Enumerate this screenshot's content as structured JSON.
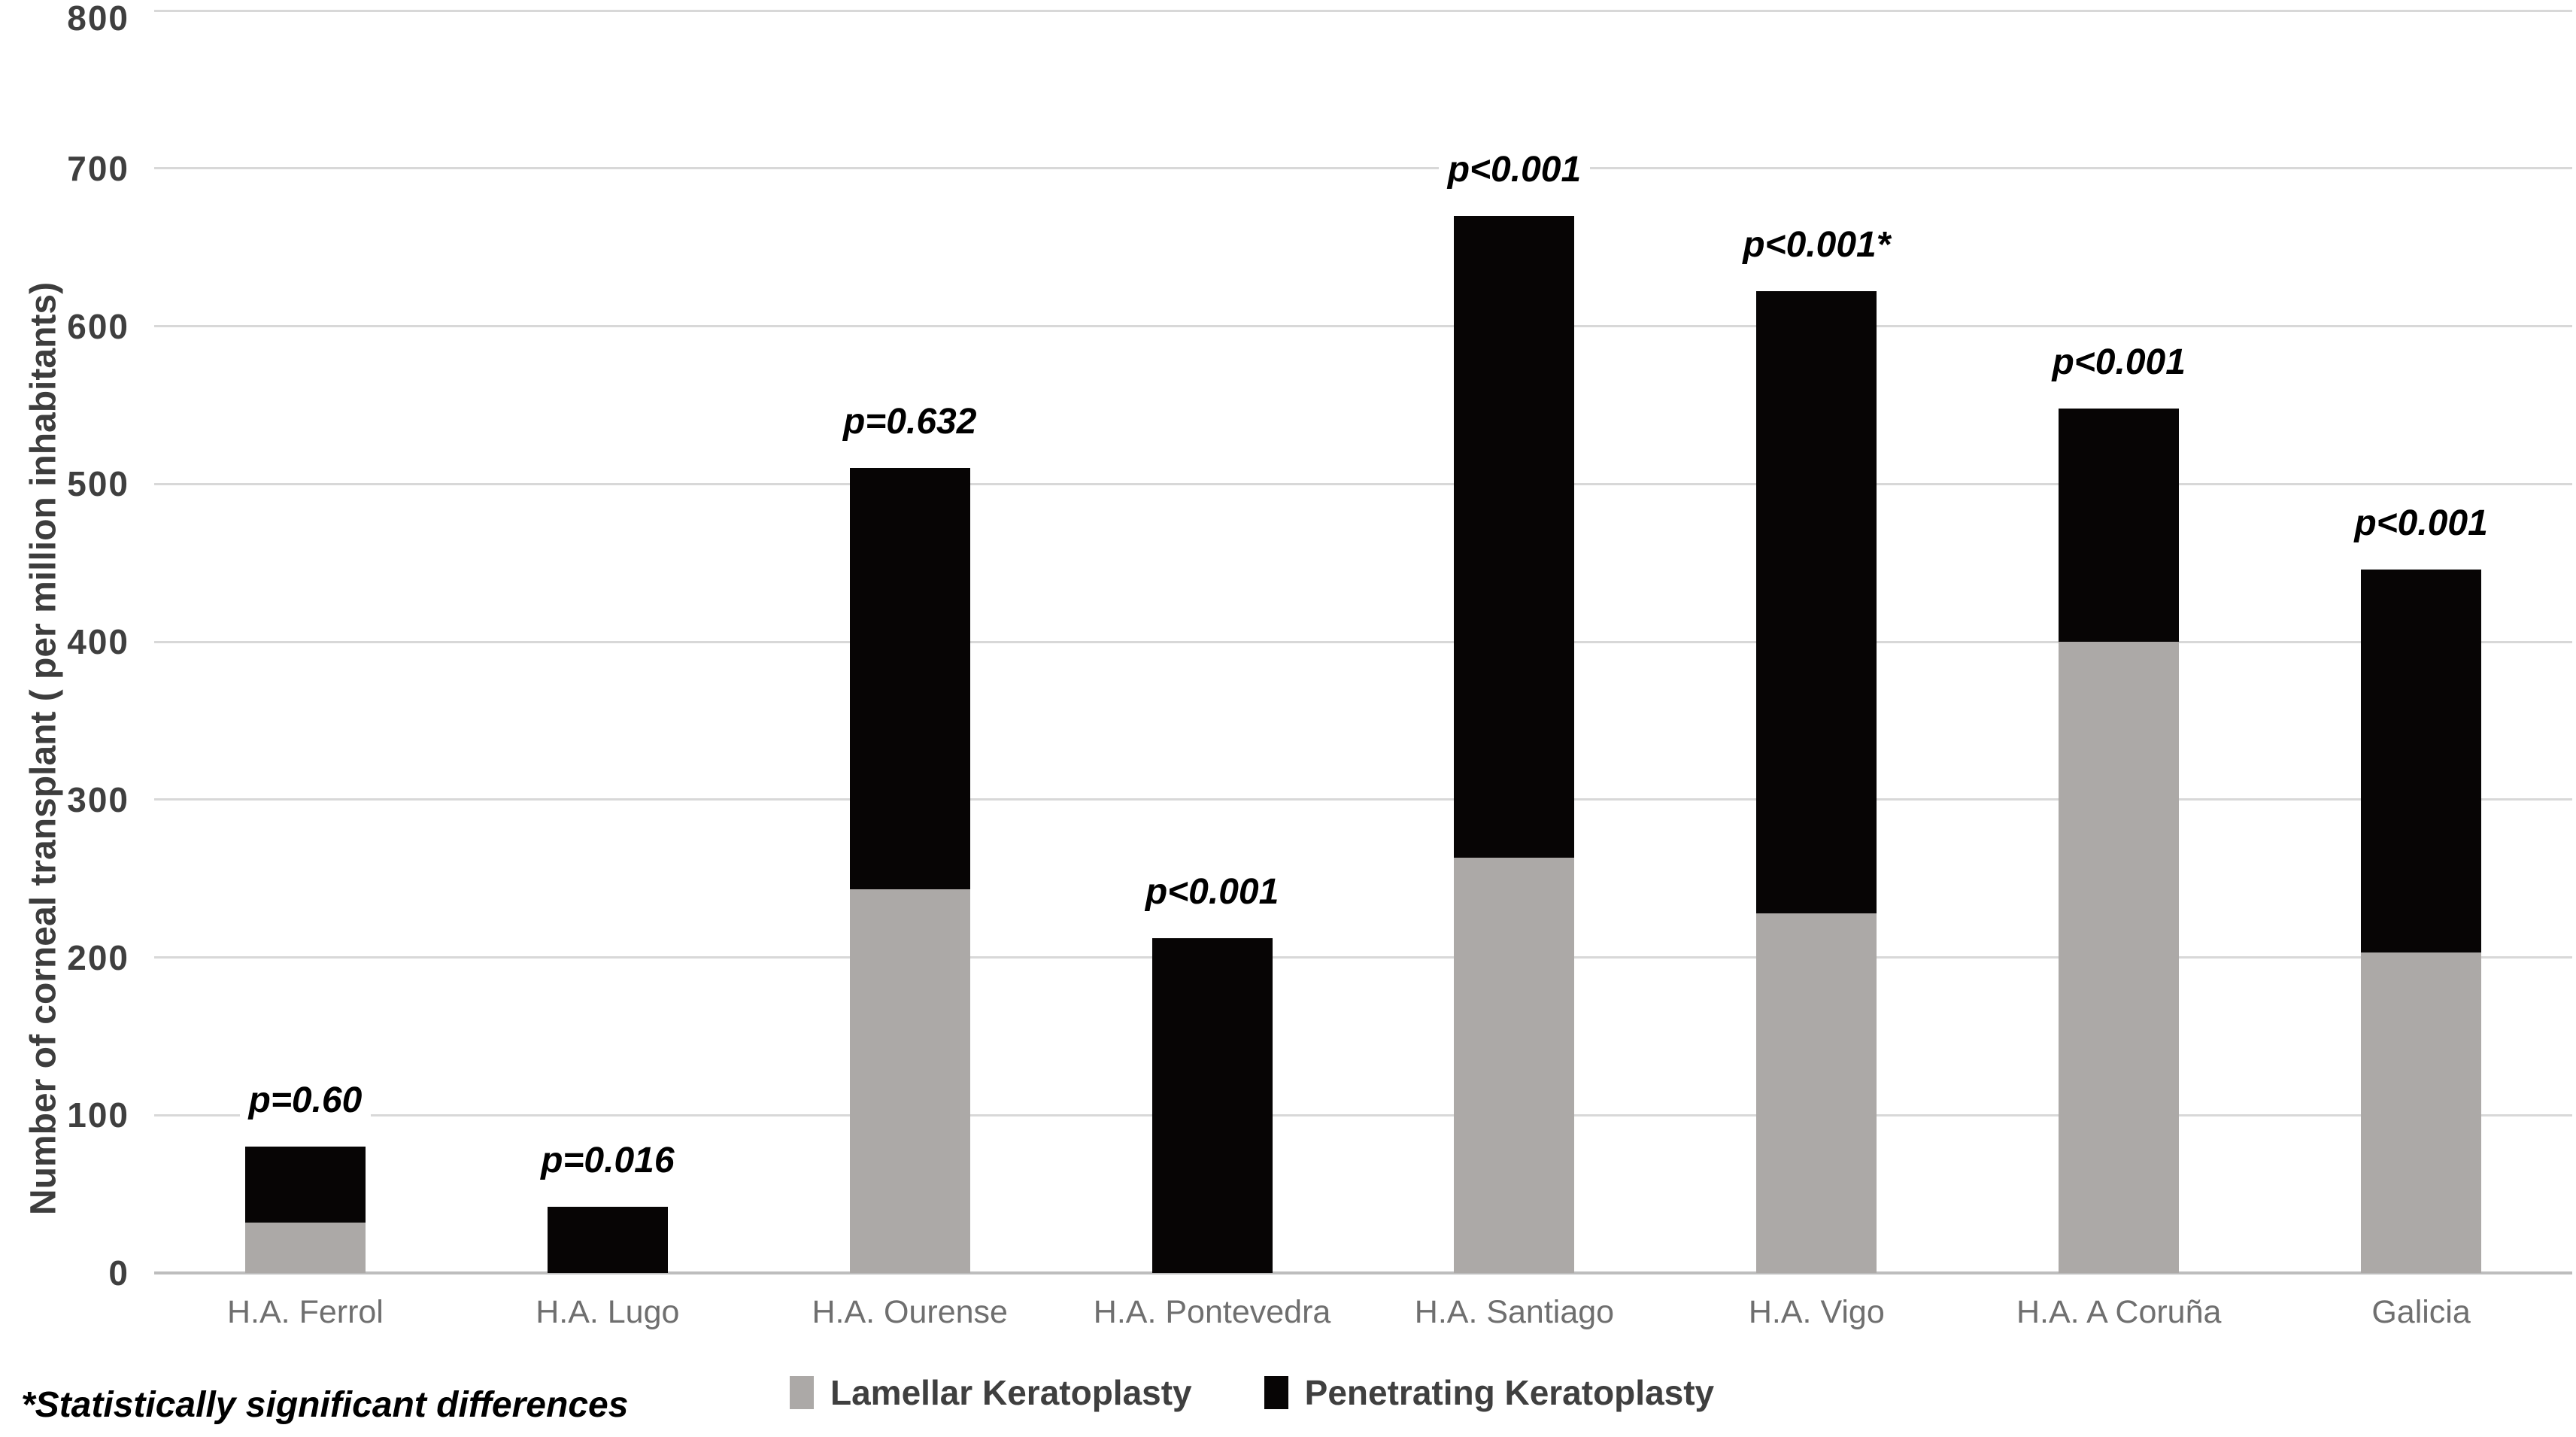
{
  "figure": {
    "y_axis_title": "Number of corneal transplant ( per million inhabitants)",
    "footnote": "*Statistically significant differences"
  },
  "legend": {
    "items": [
      {
        "label": "Lamellar Keratoplasty",
        "color": "#aca9a7"
      },
      {
        "label": "Penetrating Keratoplasty",
        "color": "#070505"
      }
    ]
  },
  "chart_data": {
    "type": "bar",
    "stacked": true,
    "title": "",
    "xlabel": "",
    "ylabel": "Number of corneal transplant ( per million inhabitants)",
    "categories": [
      "H.A. Ferrol",
      "H.A. Lugo",
      "H.A. Ourense",
      "H.A. Pontevedra",
      "H.A. Santiago",
      "H.A. Vigo",
      "H.A. A Coruña",
      "Galicia"
    ],
    "series": [
      {
        "name": "Lamellar Keratoplasty",
        "color": "#aca9a7",
        "values": [
          32,
          0,
          243,
          0,
          263,
          228,
          400,
          203
        ]
      },
      {
        "name": "Penetrating Keratoplasty",
        "color": "#070505",
        "values": [
          48,
          42,
          267,
          212,
          407,
          394,
          148,
          243
        ]
      }
    ],
    "annotations": [
      "p=0.60",
      "p=0.016",
      "p=0.632",
      "p<0.001",
      "p<0.001",
      "p<0.001*",
      "p<0.001",
      "p<0.001"
    ],
    "ylim": [
      0,
      800
    ],
    "yticks": [
      0,
      100,
      200,
      300,
      400,
      500,
      600,
      700,
      800
    ],
    "grid": true,
    "legend_position": "bottom"
  },
  "colors": {
    "gridline": "#d8d8d8",
    "baseline": "#bdbdbd",
    "tick_label": "#3f3f3f",
    "category_label": "#6f6f6f",
    "axis_title": "#3d3d3d",
    "annotation": "#000000",
    "background": "#ffffff"
  }
}
